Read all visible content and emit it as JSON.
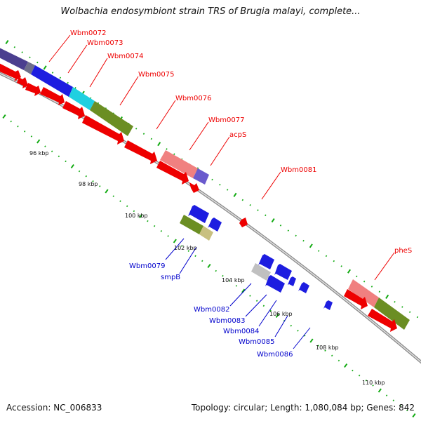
{
  "title": "Wolbachia endosymbiont strain TRS of Brugia malayi, complete...",
  "footer": {
    "accession": "Accession: NC_006833",
    "topology": "Topology: circular; Length: 1,080,084 bp; Genes: 842"
  },
  "colors": {
    "forward_label": "#ee0000",
    "reverse_label": "#0000cc",
    "tick": "#11aa11",
    "axis": "#888888"
  },
  "ruler_labels": [
    "96 kbp",
    "98 kbp",
    "100 kbp",
    "102 kbp",
    "104 kbp",
    "106 kbp",
    "108 kbp",
    "110 kbp"
  ],
  "forward_genes": [
    "Wbm0072",
    "Wbm0073",
    "Wbm0074",
    "Wbm0075",
    "Wbm0076",
    "Wbm0077",
    "acpS",
    "Wbm0081",
    "pheS"
  ],
  "reverse_genes": [
    "Wbm0079",
    "smpB",
    "Wbm0082",
    "Wbm0083",
    "Wbm0084",
    "Wbm0085",
    "Wbm0086"
  ]
}
